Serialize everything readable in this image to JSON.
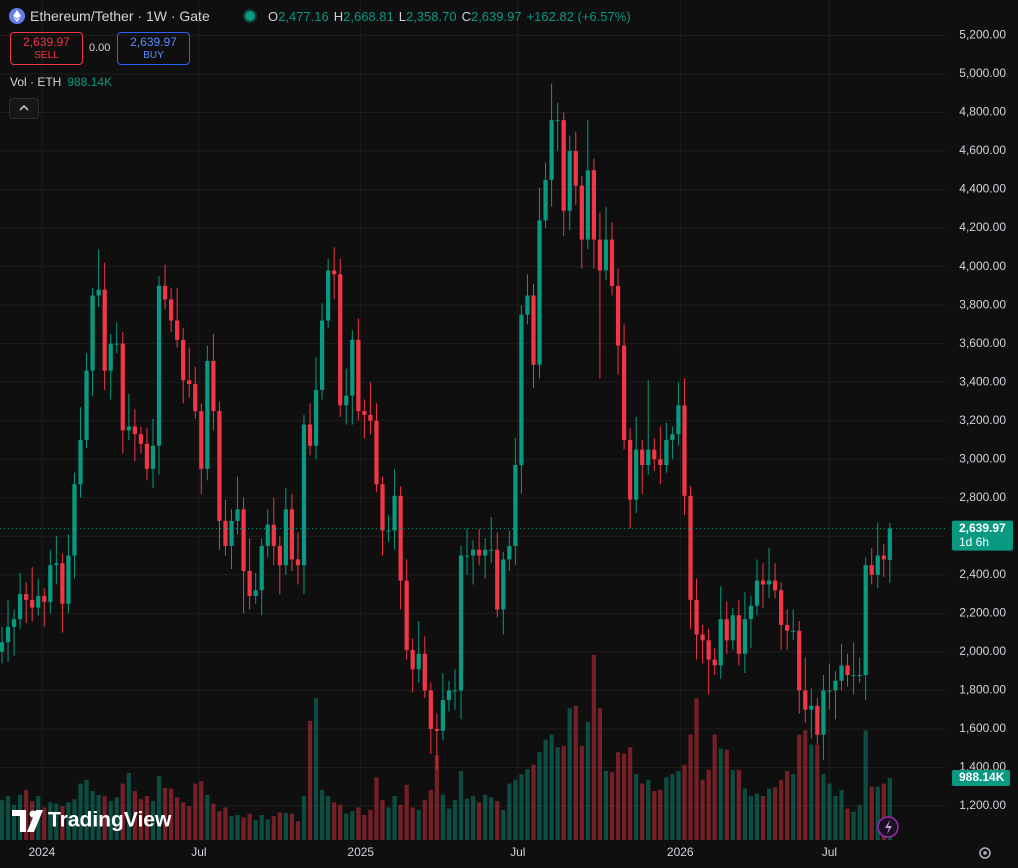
{
  "chart_data": {
    "type": "candlestick",
    "title": "Ethereum/Tether · 1W · Gate",
    "ohlc_labels": [
      {
        "key": "O",
        "value": "2,477.16"
      },
      {
        "key": "H",
        "value": "2,668.81"
      },
      {
        "key": "L",
        "value": "2,358.70"
      },
      {
        "key": "C",
        "value": "2,639.97"
      }
    ],
    "change": "+162.82 (+6.57%)",
    "trade": {
      "sell_price": "2,639.97",
      "sell": "SELL",
      "spread": "0.00",
      "buy_price": "2,639.97",
      "buy": "BUY"
    },
    "volume_title": "Vol · ETH",
    "volume_value": "988.14K",
    "last_price_label": "2,639.97",
    "countdown": "1d 6h",
    "watermark": "TradingView",
    "up_color": "#089981",
    "down_color": "#f23645",
    "grid": true,
    "xlim": [
      -0.33,
      156.3
    ],
    "xticks": [
      {
        "value": 6.6,
        "label": "2024"
      },
      {
        "value": 32.6,
        "label": "Jul"
      },
      {
        "value": 59.4,
        "label": "2025"
      },
      {
        "value": 85.4,
        "label": "Jul"
      },
      {
        "value": 112.3,
        "label": "2026"
      },
      {
        "value": 137,
        "label": "Jul"
      }
    ],
    "ylim": [
      1023.5,
      5383.8
    ],
    "yticks": [
      {
        "value": 1200,
        "label": "1,200.00"
      },
      {
        "value": 1400,
        "label": "1,400.00"
      },
      {
        "value": 1600,
        "label": "1,600.00"
      },
      {
        "value": 1800,
        "label": "1,800.00"
      },
      {
        "value": 2000,
        "label": "2,000.00"
      },
      {
        "value": 2200,
        "label": "2,200.00"
      },
      {
        "value": 2400,
        "label": "2,400.00"
      },
      {
        "value": 2600,
        "label": "2,600.00"
      },
      {
        "value": 2800,
        "label": "2,800.00"
      },
      {
        "value": 3000,
        "label": "3,000.00"
      },
      {
        "value": 3200,
        "label": "3,200.00"
      },
      {
        "value": 3400,
        "label": "3,400.00"
      },
      {
        "value": 3600,
        "label": "3,600.00"
      },
      {
        "value": 3800,
        "label": "3,800.00"
      },
      {
        "value": 4000,
        "label": "4,000.00"
      },
      {
        "value": 4200,
        "label": "4,200.00"
      },
      {
        "value": 4400,
        "label": "4,400.00"
      },
      {
        "value": 4600,
        "label": "4,600.00"
      },
      {
        "value": 4800,
        "label": "4,800.00"
      },
      {
        "value": 5000,
        "label": "5,000.00"
      },
      {
        "value": 5200,
        "label": "5,200.00"
      }
    ],
    "open": [
      2000,
      2050,
      2130,
      2170,
      2300,
      2270,
      2230,
      2290,
      2260,
      2450,
      2460,
      2250,
      2500,
      2870,
      3100,
      3460,
      3850,
      3880,
      3460,
      3600,
      3600,
      3150,
      3170,
      3130,
      3080,
      2950,
      3070,
      3900,
      3830,
      3720,
      3620,
      3410,
      3390,
      3250,
      2950,
      3510,
      3250,
      2680,
      2550,
      2680,
      2740,
      2420,
      2290,
      2320,
      2550,
      2660,
      2550,
      2450,
      2740,
      2480,
      2450,
      3180,
      3070,
      3360,
      3720,
      3980,
      3960,
      3280,
      3330,
      3620,
      3250,
      3230,
      3200,
      2870,
      2630,
      2630,
      2810,
      2370,
      2010,
      1910,
      1990,
      1800,
      1600,
      1590,
      1750,
      1800,
      1800,
      2500,
      2500,
      2530,
      2500,
      2530,
      2530,
      2220,
      2480,
      2550,
      2970,
      3750,
      3850,
      3490,
      4240,
      4450,
      4760,
      4760,
      4290,
      4600,
      4420,
      4140,
      4500,
      4140,
      3980,
      4140,
      3900,
      3590,
      3100,
      2790,
      3050,
      2970,
      3050,
      3000,
      2970,
      3100,
      3130,
      3280,
      2810,
      2270,
      2090,
      2060,
      1960,
      1930,
      2170,
      2060,
      2190,
      1990,
      2170,
      2240,
      2370,
      2350,
      2370,
      2320,
      2140,
      2110,
      2110,
      1800,
      1700,
      1720,
      1570,
      1800,
      1800,
      1850,
      1930,
      1880,
      1880,
      1880,
      2450,
      2400,
      2500,
      2477.16
    ],
    "high": [
      2130,
      2270,
      2220,
      2410,
      2360,
      2440,
      2380,
      2330,
      2530,
      2600,
      2510,
      2610,
      2930,
      3270,
      3550,
      3890,
      4090,
      4020,
      3650,
      3710,
      3660,
      3340,
      3260,
      3170,
      3160,
      3210,
      3950,
      4010,
      3890,
      3890,
      3680,
      3580,
      3480,
      3290,
      3590,
      3650,
      3300,
      2790,
      2740,
      2910,
      2800,
      2590,
      2410,
      2590,
      2740,
      2800,
      2600,
      2850,
      2820,
      2620,
      3230,
      3290,
      3530,
      3810,
      4040,
      4100,
      4040,
      3470,
      3670,
      3730,
      3310,
      3400,
      3290,
      2910,
      2710,
      2950,
      2860,
      2480,
      2070,
      2160,
      2080,
      1840,
      1680,
      1890,
      1850,
      1910,
      2550,
      2640,
      2580,
      2640,
      2590,
      2700,
      2620,
      2520,
      2630,
      3110,
      3800,
      3960,
      3910,
      4410,
      4540,
      4950,
      4850,
      4800,
      4680,
      4700,
      4470,
      4760,
      4560,
      4280,
      4310,
      4230,
      3990,
      3700,
      3160,
      3220,
      3100,
      3410,
      3110,
      3170,
      3190,
      3170,
      3400,
      3420,
      2860,
      2380,
      2140,
      2120,
      2020,
      2340,
      2260,
      2230,
      2270,
      2310,
      2290,
      2480,
      2460,
      2540,
      2460,
      2360,
      2220,
      2220,
      2160,
      1970,
      1810,
      1760,
      1880,
      1940,
      1900,
      2040,
      1990,
      2050,
      1970,
      2490,
      2540,
      2670,
      2560,
      2668.81
    ],
    "low": [
      1940,
      1950,
      1980,
      2120,
      2150,
      2160,
      2190,
      2130,
      2200,
      2350,
      2100,
      2200,
      2380,
      2800,
      3060,
      3330,
      3790,
      3360,
      3310,
      3550,
      3030,
      3100,
      2990,
      3030,
      2890,
      2850,
      2920,
      3780,
      3660,
      3580,
      3290,
      3320,
      3210,
      2820,
      2890,
      3150,
      2530,
      2500,
      2430,
      2610,
      2200,
      2220,
      2250,
      2190,
      2490,
      2450,
      2300,
      2400,
      2420,
      2350,
      2300,
      3020,
      3000,
      3310,
      3680,
      3830,
      3220,
      3180,
      3180,
      3200,
      3110,
      3130,
      2830,
      2500,
      2570,
      2530,
      2220,
      1960,
      1790,
      1840,
      1760,
      1470,
      1390,
      1540,
      1690,
      1700,
      1650,
      2400,
      2350,
      2450,
      2380,
      2460,
      2180,
      2090,
      2420,
      2450,
      2820,
      3700,
      3370,
      3420,
      4200,
      4310,
      4600,
      4160,
      4190,
      4320,
      3990,
      4090,
      3990,
      3420,
      3930,
      3850,
      3440,
      3050,
      2640,
      2720,
      2820,
      2920,
      2940,
      2870,
      2930,
      3000,
      3070,
      2710,
      2120,
      1960,
      1940,
      1780,
      1880,
      1860,
      1990,
      2010,
      1930,
      1890,
      2020,
      2190,
      2230,
      2280,
      2280,
      2010,
      2010,
      2060,
      1680,
      1630,
      1550,
      1520,
      1440,
      1700,
      1650,
      1800,
      1820,
      1780,
      1840,
      1750,
      2350,
      2330,
      2390,
      2358.7
    ],
    "close": [
      2050,
      2130,
      2170,
      2300,
      2270,
      2230,
      2290,
      2260,
      2450,
      2460,
      2250,
      2500,
      2870,
      3100,
      3460,
      3850,
      3880,
      3460,
      3600,
      3600,
      3150,
      3170,
      3130,
      3080,
      2950,
      3070,
      3900,
      3830,
      3720,
      3620,
      3410,
      3390,
      3250,
      2950,
      3510,
      3250,
      2680,
      2550,
      2680,
      2740,
      2420,
      2290,
      2320,
      2550,
      2660,
      2550,
      2450,
      2740,
      2480,
      2450,
      3180,
      3070,
      3360,
      3720,
      3980,
      3960,
      3280,
      3330,
      3620,
      3250,
      3230,
      3200,
      2870,
      2630,
      2630,
      2810,
      2370,
      2010,
      1910,
      1990,
      1800,
      1600,
      1590,
      1750,
      1800,
      1800,
      2500,
      2500,
      2530,
      2500,
      2530,
      2530,
      2220,
      2480,
      2550,
      2970,
      3750,
      3850,
      3490,
      4240,
      4450,
      4760,
      4760,
      4290,
      4600,
      4420,
      4140,
      4500,
      4140,
      3980,
      4140,
      3900,
      3590,
      3100,
      2790,
      3050,
      2970,
      3050,
      3000,
      2970,
      3100,
      3130,
      3280,
      2810,
      2270,
      2090,
      2060,
      1960,
      1930,
      2170,
      2060,
      2190,
      1990,
      2170,
      2240,
      2370,
      2350,
      2370,
      2320,
      2140,
      2110,
      2110,
      1800,
      1700,
      1720,
      1570,
      1800,
      1800,
      1850,
      1930,
      1880,
      1880,
      1880,
      2450,
      2400,
      2500,
      2480,
      2639.97
    ],
    "volume": [
      640000,
      700000,
      560000,
      720000,
      800000,
      620000,
      700000,
      520000,
      600000,
      580000,
      540000,
      600000,
      650000,
      900000,
      960000,
      780000,
      720000,
      700000,
      620000,
      680000,
      900000,
      1070000,
      780000,
      650000,
      700000,
      620000,
      1020000,
      830000,
      820000,
      680000,
      600000,
      540000,
      900000,
      940000,
      720000,
      580000,
      460000,
      520000,
      380000,
      400000,
      360000,
      420000,
      320000,
      400000,
      330000,
      380000,
      440000,
      430000,
      420000,
      300000,
      700000,
      1900000,
      2260000,
      800000,
      700000,
      600000,
      560000,
      420000,
      460000,
      520000,
      400000,
      480000,
      1000000,
      640000,
      520000,
      700000,
      560000,
      880000,
      520000,
      480000,
      640000,
      800000,
      1350000,
      720000,
      500000,
      640000,
      1100000,
      660000,
      700000,
      600000,
      720000,
      680000,
      620000,
      480000,
      900000,
      960000,
      1050000,
      1130000,
      1200000,
      1400000,
      1600000,
      1680000,
      1480000,
      1500000,
      2100000,
      2140000,
      1500000,
      1880000,
      2950000,
      2100000,
      1100000,
      1080000,
      1400000,
      1380000,
      1480000,
      1050000,
      900000,
      960000,
      780000,
      800000,
      1000000,
      1050000,
      1100000,
      1200000,
      1680000,
      2260000,
      960000,
      1120000,
      1680000,
      1460000,
      1440000,
      1120000,
      1120000,
      820000,
      700000,
      740000,
      700000,
      820000,
      840000,
      960000,
      1100000,
      1050000,
      1680000,
      1750000,
      1520000,
      1520000,
      1050000,
      900000,
      700000,
      800000,
      500000,
      450000,
      560000,
      1750000,
      850000,
      850000,
      900000,
      988140
    ]
  }
}
